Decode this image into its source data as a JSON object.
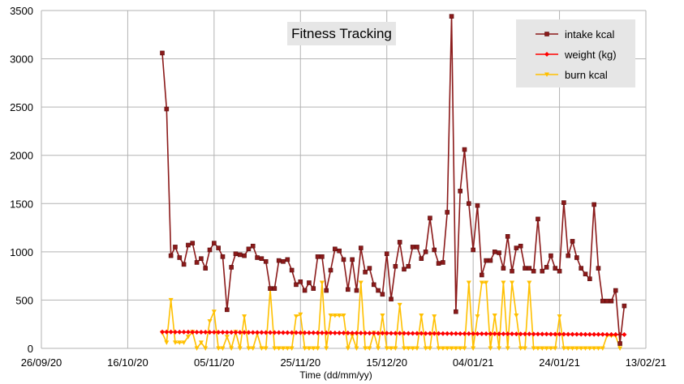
{
  "chart_data": {
    "type": "line",
    "title": "Fitness Tracking",
    "xlabel": "Time (dd/mm/yy)",
    "ylabel": "",
    "ylim": [
      0,
      3500
    ],
    "yticks": [
      "0",
      "500",
      "1000",
      "1500",
      "2000",
      "2500",
      "3000",
      "3500"
    ],
    "xlim": [
      "2020-09-26",
      "2021-02-13"
    ],
    "xticks": [
      "26/09/20",
      "16/10/20",
      "05/11/20",
      "25/11/20",
      "15/12/20",
      "04/01/21",
      "24/01/21",
      "13/02/21"
    ],
    "grid": true,
    "legend": "top-right",
    "x_start": "2020-10-24",
    "series": [
      {
        "name": "intake kcal",
        "color": "#8b1a1a",
        "marker": "square",
        "values": [
          3060,
          2480,
          960,
          1050,
          940,
          870,
          1070,
          1090,
          890,
          930,
          830,
          1020,
          1090,
          1040,
          950,
          400,
          840,
          980,
          970,
          960,
          1030,
          1060,
          940,
          930,
          900,
          620,
          620,
          910,
          900,
          920,
          810,
          660,
          690,
          600,
          680,
          620,
          950,
          950,
          600,
          810,
          1030,
          1010,
          920,
          610,
          920,
          600,
          1040,
          790,
          830,
          660,
          600,
          560,
          980,
          510,
          850,
          1100,
          820,
          850,
          1050,
          1050,
          930,
          1000,
          1350,
          1020,
          880,
          890,
          1410,
          3440,
          380,
          1630,
          2060,
          1500,
          1020,
          1480,
          760,
          910,
          910,
          1000,
          990,
          830,
          1160,
          800,
          1040,
          1060,
          830,
          830,
          800,
          1340,
          800,
          840,
          960,
          830,
          800,
          1510,
          960,
          1110,
          940,
          830,
          770,
          720,
          1490,
          830,
          490,
          490,
          490,
          600,
          50,
          440
        ]
      },
      {
        "name": "weight (kg)",
        "color": "#ff0000",
        "marker": "diamond",
        "start_value": 170,
        "end_value": 143
      },
      {
        "name": "burn kcal",
        "color": "#ffc000",
        "marker": "triangle-down",
        "values": [
          160,
          60,
          500,
          60,
          60,
          60,
          120,
          170,
          0,
          60,
          0,
          280,
          380,
          0,
          0,
          120,
          0,
          170,
          0,
          330,
          0,
          0,
          150,
          0,
          0,
          610,
          0,
          0,
          0,
          0,
          0,
          330,
          350,
          0,
          0,
          0,
          0,
          680,
          0,
          340,
          340,
          340,
          340,
          0,
          130,
          0,
          680,
          0,
          0,
          160,
          0,
          340,
          0,
          0,
          0,
          450,
          0,
          0,
          0,
          0,
          340,
          0,
          0,
          330,
          0,
          0,
          0,
          0,
          0,
          0,
          0,
          680,
          0,
          330,
          680,
          680,
          0,
          340,
          0,
          680,
          0,
          680,
          340,
          0,
          0,
          680,
          0,
          0,
          0,
          0,
          0,
          0,
          330,
          0,
          0,
          0,
          0,
          0,
          0,
          0,
          0,
          0,
          0,
          130,
          130,
          130,
          0
        ]
      }
    ]
  }
}
